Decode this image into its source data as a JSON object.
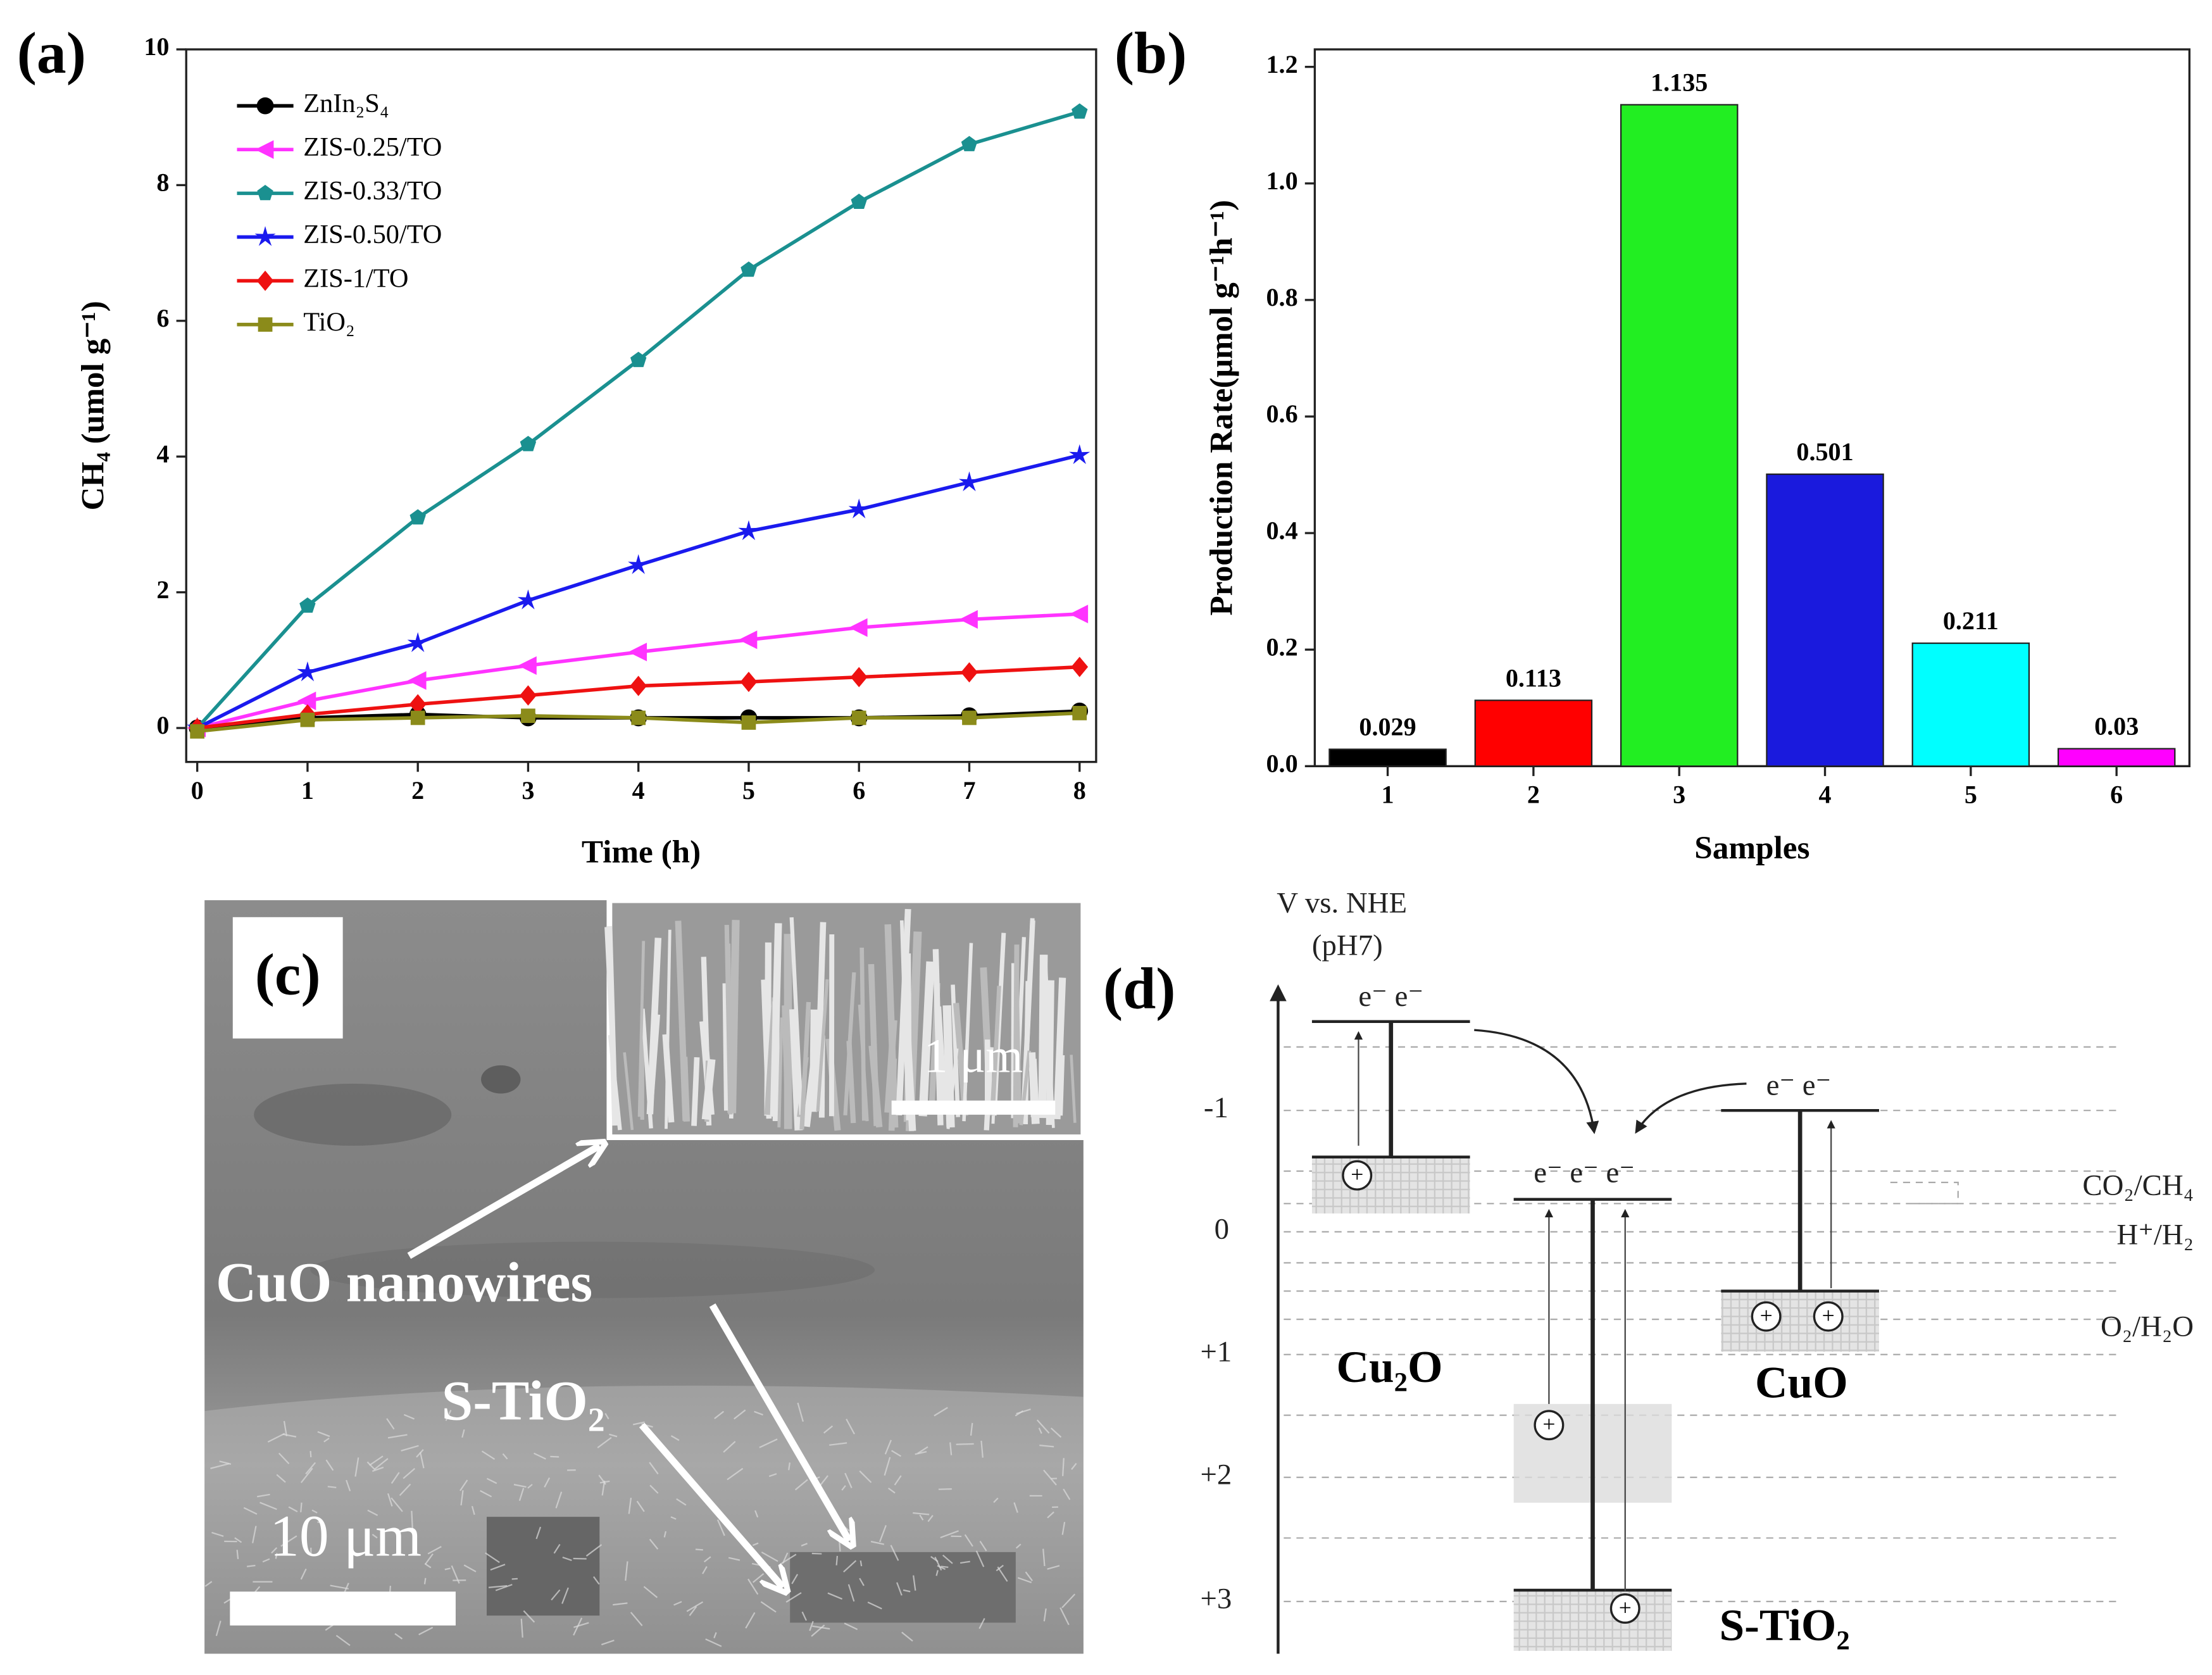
{
  "chart_data": [
    {
      "type": "line",
      "title": "(a)",
      "xlabel": "Time (h)",
      "ylabel": "CH₄ (umol g⁻¹)",
      "x": [
        0,
        1,
        2,
        3,
        4,
        5,
        6,
        7,
        8
      ],
      "xlim": [
        -0.1,
        8.15
      ],
      "xticks": [
        0,
        1,
        2,
        3,
        4,
        5,
        6,
        7,
        8
      ],
      "ylim": [
        -0.5,
        10
      ],
      "yticks": [
        0,
        2,
        4,
        6,
        8,
        10
      ],
      "series": [
        {
          "name": "ZnIn₂S₄",
          "color": "#000000",
          "marker": "circle",
          "values": [
            0,
            0.15,
            0.2,
            0.15,
            0.15,
            0.15,
            0.15,
            0.18,
            0.25
          ]
        },
        {
          "name": "ZIS-0.25/TO",
          "color": "#ff33ff",
          "marker": "triangle-left",
          "values": [
            0,
            0.4,
            0.7,
            0.92,
            1.12,
            1.3,
            1.48,
            1.6,
            1.68
          ]
        },
        {
          "name": "ZIS-0.33/TO",
          "color": "#1a9090",
          "marker": "pentagon",
          "values": [
            0,
            1.8,
            3.1,
            4.18,
            5.42,
            6.75,
            7.75,
            8.6,
            9.08
          ]
        },
        {
          "name": "ZIS-0.50/TO",
          "color": "#1a1aee",
          "marker": "star",
          "values": [
            0,
            0.82,
            1.25,
            1.88,
            2.4,
            2.9,
            3.22,
            3.62,
            4.02
          ]
        },
        {
          "name": "ZIS-1/TO",
          "color": "#ee1111",
          "marker": "diamond",
          "values": [
            0,
            0.2,
            0.35,
            0.48,
            0.62,
            0.68,
            0.75,
            0.82,
            0.9
          ]
        },
        {
          "name": "TiO₂",
          "color": "#8b8b1a",
          "marker": "square",
          "values": [
            -0.05,
            0.12,
            0.15,
            0.18,
            0.15,
            0.08,
            0.15,
            0.15,
            0.22
          ]
        }
      ]
    },
    {
      "type": "bar",
      "title": "(b)",
      "xlabel": "Samples",
      "ylabel": "Production Rate(μmol g⁻¹h⁻¹)",
      "categories": [
        "1",
        "2",
        "3",
        "4",
        "5",
        "6"
      ],
      "values": [
        0.029,
        0.113,
        1.135,
        0.501,
        0.211,
        0.03
      ],
      "colors": [
        "#000000",
        "#ff0000",
        "#22ee22",
        "#1a1add",
        "#00ffff",
        "#ff00ff"
      ],
      "ylim": [
        0,
        1.23
      ],
      "yticks": [
        {
          "value": 0,
          "label": "0.0"
        },
        0.2,
        0.4,
        0.6,
        0.8,
        {
          "value": 1,
          "label": "1.0"
        },
        1.2
      ]
    }
  ],
  "image_panel": {
    "label": "(c)",
    "inset_scale": "1 μm",
    "arrow_1": "CuO nanowires",
    "arrow_2": "S-TiO₂",
    "scale": "10 μm"
  },
  "diagram": {
    "label": "(d)",
    "axis_title": "V vs. NHE",
    "axis_subtitle": "(pH7)",
    "axis_labels": [
      "-1",
      "0",
      "+1",
      "+2",
      "+3"
    ],
    "electrons": [
      "e⁻  e⁻",
      "e⁻ e⁻ e⁻",
      "e⁻  e⁻"
    ],
    "hole_symbol": "+",
    "materials": [
      "Cu₂O",
      "S-TiO₂",
      "CuO"
    ],
    "redox": [
      "CO₂/CH₄",
      "H⁺/H₂",
      "O₂/H₂O"
    ]
  }
}
